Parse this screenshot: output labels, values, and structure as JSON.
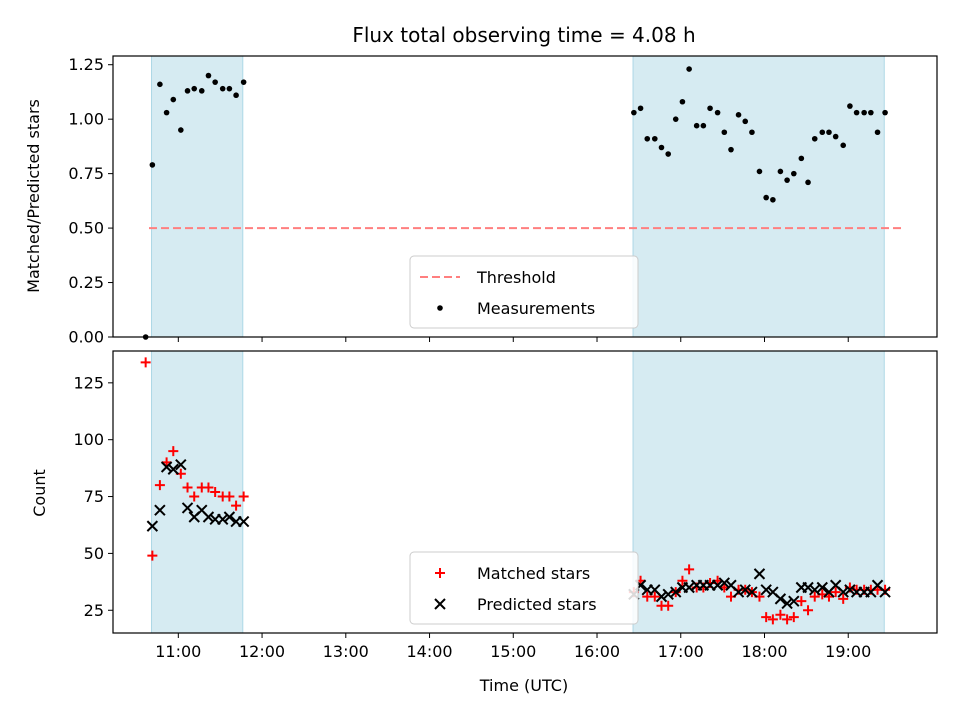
{
  "chart_data": {
    "type": "scatter",
    "title": "Flux total observing time = 4.08 h",
    "xlabel": "Time (UTC)",
    "x_unit": "hour of day (UTC, decimal)",
    "xlim": [
      10.22,
      20.06
    ],
    "x_ticks": [
      {
        "value": 11,
        "label": "11:00"
      },
      {
        "value": 12,
        "label": "12:00"
      },
      {
        "value": 13,
        "label": "13:00"
      },
      {
        "value": 14,
        "label": "14:00"
      },
      {
        "value": 15,
        "label": "15:00"
      },
      {
        "value": 16,
        "label": "16:00"
      },
      {
        "value": 17,
        "label": "17:00"
      },
      {
        "value": 18,
        "label": "18:00"
      },
      {
        "value": 19,
        "label": "19:00"
      }
    ],
    "shaded_intervals": [
      [
        10.68,
        11.77
      ],
      [
        16.43,
        19.43
      ]
    ],
    "shade_color": "#add8e6",
    "panels": [
      {
        "id": "ratio",
        "ylabel": "Matched/Predicted stars",
        "ylim": [
          0,
          1.29
        ],
        "y_ticks": [
          "0.00",
          "0.25",
          "0.50",
          "0.75",
          "1.00",
          "1.25"
        ],
        "threshold": {
          "name": "Threshold",
          "value": 0.5,
          "color": "#ff7f7f"
        },
        "legend_placement": "lower-center",
        "series": [
          {
            "name": "Measurements",
            "marker": "dot",
            "color": "#000000",
            "points": [
              [
                10.61,
                0.0
              ],
              [
                10.69,
                0.79
              ],
              [
                10.78,
                1.16
              ],
              [
                10.86,
                1.03
              ],
              [
                10.94,
                1.09
              ],
              [
                11.03,
                0.95
              ],
              [
                11.11,
                1.13
              ],
              [
                11.19,
                1.14
              ],
              [
                11.28,
                1.13
              ],
              [
                11.36,
                1.2
              ],
              [
                11.44,
                1.17
              ],
              [
                11.53,
                1.14
              ],
              [
                11.61,
                1.14
              ],
              [
                11.69,
                1.11
              ],
              [
                11.78,
                1.17
              ],
              [
                16.44,
                1.03
              ],
              [
                16.52,
                1.05
              ],
              [
                16.6,
                0.91
              ],
              [
                16.69,
                0.91
              ],
              [
                16.77,
                0.87
              ],
              [
                16.85,
                0.84
              ],
              [
                16.94,
                1.0
              ],
              [
                17.02,
                1.08
              ],
              [
                17.1,
                1.23
              ],
              [
                17.19,
                0.97
              ],
              [
                17.27,
                0.97
              ],
              [
                17.35,
                1.05
              ],
              [
                17.44,
                1.03
              ],
              [
                17.52,
                0.94
              ],
              [
                17.6,
                0.86
              ],
              [
                17.69,
                1.02
              ],
              [
                17.77,
                0.99
              ],
              [
                17.85,
                0.94
              ],
              [
                17.94,
                0.76
              ],
              [
                18.02,
                0.64
              ],
              [
                18.1,
                0.63
              ],
              [
                18.19,
                0.76
              ],
              [
                18.27,
                0.72
              ],
              [
                18.35,
                0.75
              ],
              [
                18.44,
                0.82
              ],
              [
                18.52,
                0.71
              ],
              [
                18.6,
                0.91
              ],
              [
                18.69,
                0.94
              ],
              [
                18.77,
                0.94
              ],
              [
                18.85,
                0.92
              ],
              [
                18.94,
                0.88
              ],
              [
                19.02,
                1.06
              ],
              [
                19.1,
                1.03
              ],
              [
                19.19,
                1.03
              ],
              [
                19.27,
                1.03
              ],
              [
                19.35,
                0.94
              ],
              [
                19.44,
                1.03
              ]
            ]
          }
        ]
      },
      {
        "id": "count",
        "ylabel": "Count",
        "ylim": [
          15,
          139
        ],
        "y_ticks": [
          "25",
          "50",
          "75",
          "100",
          "125"
        ],
        "legend_placement": "lower-center",
        "series": [
          {
            "name": "Matched stars",
            "marker": "plus",
            "color": "#ff0000",
            "points": [
              [
                10.61,
                134
              ],
              [
                10.69,
                49
              ],
              [
                10.78,
                80
              ],
              [
                10.86,
                90
              ],
              [
                10.94,
                95
              ],
              [
                11.03,
                85
              ],
              [
                11.11,
                79
              ],
              [
                11.19,
                75
              ],
              [
                11.28,
                79
              ],
              [
                11.36,
                79
              ],
              [
                11.44,
                77
              ],
              [
                11.53,
                75
              ],
              [
                11.61,
                75
              ],
              [
                11.69,
                71
              ],
              [
                11.78,
                75
              ],
              [
                16.44,
                33
              ],
              [
                16.52,
                38
              ],
              [
                16.6,
                31
              ],
              [
                16.69,
                31
              ],
              [
                16.77,
                27
              ],
              [
                16.85,
                27
              ],
              [
                16.94,
                33
              ],
              [
                17.02,
                38
              ],
              [
                17.1,
                43
              ],
              [
                17.19,
                35
              ],
              [
                17.27,
                35
              ],
              [
                17.35,
                37
              ],
              [
                17.44,
                38
              ],
              [
                17.52,
                35
              ],
              [
                17.6,
                31
              ],
              [
                17.69,
                34
              ],
              [
                17.77,
                34
              ],
              [
                17.85,
                33
              ],
              [
                17.94,
                31
              ],
              [
                18.02,
                22
              ],
              [
                18.1,
                21
              ],
              [
                18.19,
                23
              ],
              [
                18.27,
                21
              ],
              [
                18.35,
                22
              ],
              [
                18.44,
                29
              ],
              [
                18.52,
                25
              ],
              [
                18.6,
                31
              ],
              [
                18.69,
                32
              ],
              [
                18.77,
                31
              ],
              [
                18.85,
                33
              ],
              [
                18.94,
                30
              ],
              [
                19.02,
                35
              ],
              [
                19.1,
                34
              ],
              [
                19.19,
                34
              ],
              [
                19.27,
                34
              ],
              [
                19.35,
                34
              ],
              [
                19.44,
                34
              ]
            ]
          },
          {
            "name": "Predicted stars",
            "marker": "x",
            "color": "#000000",
            "points": [
              [
                10.69,
                62
              ],
              [
                10.78,
                69
              ],
              [
                10.86,
                88
              ],
              [
                10.94,
                87
              ],
              [
                11.03,
                89
              ],
              [
                11.11,
                70
              ],
              [
                11.19,
                66
              ],
              [
                11.28,
                69
              ],
              [
                11.36,
                66
              ],
              [
                11.44,
                65
              ],
              [
                11.53,
                65
              ],
              [
                11.61,
                66
              ],
              [
                11.69,
                64
              ],
              [
                11.78,
                64
              ],
              [
                16.44,
                32
              ],
              [
                16.52,
                36
              ],
              [
                16.6,
                34
              ],
              [
                16.69,
                34
              ],
              [
                16.77,
                31
              ],
              [
                16.85,
                32
              ],
              [
                16.94,
                33
              ],
              [
                17.02,
                35
              ],
              [
                17.1,
                35
              ],
              [
                17.19,
                36
              ],
              [
                17.27,
                36
              ],
              [
                17.35,
                36
              ],
              [
                17.44,
                36
              ],
              [
                17.52,
                37
              ],
              [
                17.6,
                36
              ],
              [
                17.69,
                33
              ],
              [
                17.77,
                34
              ],
              [
                17.85,
                33
              ],
              [
                17.94,
                41
              ],
              [
                18.02,
                34
              ],
              [
                18.1,
                33
              ],
              [
                18.19,
                30
              ],
              [
                18.27,
                28
              ],
              [
                18.35,
                29
              ],
              [
                18.44,
                35
              ],
              [
                18.52,
                35
              ],
              [
                18.6,
                34
              ],
              [
                18.69,
                35
              ],
              [
                18.77,
                33
              ],
              [
                18.85,
                36
              ],
              [
                18.94,
                33
              ],
              [
                19.02,
                34
              ],
              [
                19.1,
                33
              ],
              [
                19.19,
                33
              ],
              [
                19.27,
                33
              ],
              [
                19.35,
                36
              ],
              [
                19.44,
                33
              ]
            ]
          }
        ]
      }
    ]
  }
}
